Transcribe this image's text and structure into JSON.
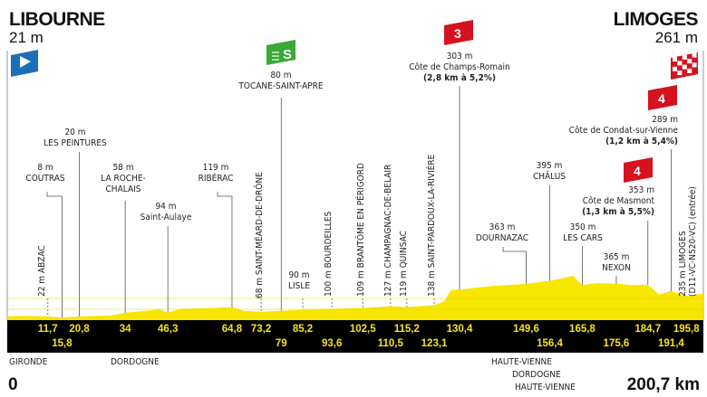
{
  "start": {
    "city": "LIBOURNE",
    "altitude": "21 m",
    "icon": "start-flag-icon",
    "color": "#1b6fb8"
  },
  "finish": {
    "city": "LIMOGES",
    "altitude": "261 m",
    "icon": "checkered-finish-flag-icon",
    "color": "#d5121e"
  },
  "sprint": {
    "altitude": "80 m",
    "name": "TOCANE-SAINT-APRE",
    "km": 79,
    "icon": "sprint-icon",
    "badge": "S",
    "color": "#3aa935"
  },
  "climbs": [
    {
      "category": "3",
      "altitude": "303 m",
      "name": "Côte de Champs-Romain",
      "detail": "(2,8 km à 5,2%)",
      "km": 130.4
    },
    {
      "category": "4",
      "altitude": "353 m",
      "name": "Côte de Masmont",
      "detail": "(1,3 km à 5,5%)",
      "km": 184.7
    },
    {
      "category": "4",
      "altitude": "289 m",
      "name": "Côte de Condat-sur-Vienne",
      "detail": "(1,2 km à 5,4%)",
      "km": 191.4
    }
  ],
  "places": {
    "abzac": {
      "altitude": "22 m",
      "name": "ABZAC",
      "km": 11.7
    },
    "coutras": {
      "altitude": "8 m",
      "name": "COUTRAS",
      "km": 15.8
    },
    "peintures": {
      "altitude": "20 m",
      "name": "LES PEINTURES",
      "km": 20.8
    },
    "roche": {
      "altitude": "58 m",
      "name1": "LA ROCHE-",
      "name2": "CHALAIS",
      "km": 34
    },
    "aulaye": {
      "altitude": "94 m",
      "name": "Saint-Aulaye",
      "km": 46.3
    },
    "riberac": {
      "altitude": "119 m",
      "name": "RIBÉRAC",
      "km": 64.8
    },
    "meard": {
      "altitude": "68 m",
      "name": "SAINT-MÉARD-DE-DRÔNE",
      "km": 73.2
    },
    "lisle": {
      "altitude": "90 m",
      "name": "LISLE",
      "km": 85.2
    },
    "bourdeilles": {
      "altitude": "100 m",
      "name": "BOURDEILLES",
      "km": 93.6
    },
    "brantome": {
      "altitude": "109 m",
      "name": "BRANTÔME EN PÉRIGORD",
      "km": 102.5
    },
    "champagnac": {
      "altitude": "127 m",
      "name": "CHAMPAGNAC-DE-BELAIR",
      "km": 110.5
    },
    "quinsac": {
      "altitude": "119 m",
      "name": "QUINSAC",
      "km": 115.2
    },
    "pardoux": {
      "altitude": "138 m",
      "name": "SAINT-PARDOUX-LA-RIVIÈRE",
      "km": 123.1
    },
    "dournazac": {
      "altitude": "363 m",
      "name": "DOURNAZAC",
      "km": 149.6
    },
    "chalus": {
      "altitude": "395 m",
      "name": "CHÂLUS",
      "km": 156.4
    },
    "cars": {
      "altitude": "350 m",
      "name": "LES CARS",
      "km": 165.8
    },
    "nexon": {
      "altitude": "365 m",
      "name": "NEXON",
      "km": 175.6
    },
    "limoges": {
      "altitude": "235 m",
      "name": "LIMOGES",
      "detail": "(D11-VC-N520-VC) (entrée)",
      "km": 195.8
    }
  },
  "km_row1": [
    "11,7",
    "20,8",
    "34",
    "46,3",
    "64,8",
    "73,2",
    "85,2",
    "102,5",
    "115,2",
    "130,4",
    "149,6",
    "165,8",
    "184,7",
    "195,8"
  ],
  "km_row2": [
    "15,8",
    "79",
    "93,6",
    "110,5",
    "123,1",
    "156,4",
    "175,6",
    "191,4"
  ],
  "departments": [
    "GIRONDE",
    "DORDOGNE",
    "HAUTE-VIENNE",
    "DORDOGNE",
    "HAUTE-VIENNE"
  ],
  "distance_start": "0",
  "distance_total": "200,7 km",
  "profile": {
    "fill_color": "#f6e600",
    "km": [
      0,
      5,
      11.7,
      15.8,
      20.8,
      30,
      34,
      40,
      44,
      46.3,
      50,
      60,
      64.8,
      68,
      73.2,
      79,
      85.2,
      93.6,
      102.5,
      110.5,
      115.2,
      123.1,
      126,
      128,
      130.4,
      140,
      149.6,
      156.4,
      160,
      163,
      165.8,
      170,
      175.6,
      180,
      184.7,
      188,
      191.4,
      195.8,
      200.7
    ],
    "elevation_m": [
      21,
      25,
      22,
      8,
      20,
      30,
      58,
      80,
      95,
      60,
      100,
      110,
      119,
      80,
      68,
      80,
      90,
      100,
      109,
      127,
      119,
      138,
      180,
      300,
      303,
      340,
      363,
      395,
      420,
      450,
      350,
      370,
      365,
      350,
      353,
      250,
      289,
      235,
      261
    ]
  }
}
